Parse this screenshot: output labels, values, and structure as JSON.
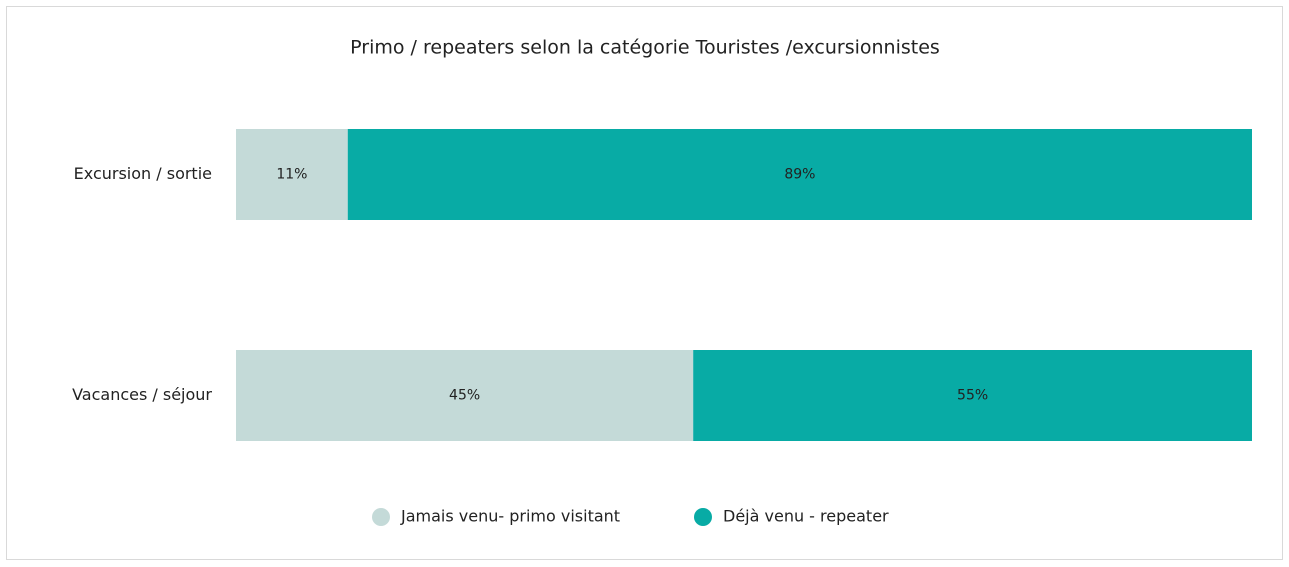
{
  "chart_data": {
    "type": "bar",
    "orientation": "horizontal",
    "stacked": true,
    "title": "Primo / repeaters selon la catégorie Touristes /excursionnistes",
    "categories": [
      "Excursion / sortie",
      "Vacances / séjour"
    ],
    "series": [
      {
        "name": "Jamais venu- primo visitant",
        "color": "#c4dad8",
        "values": [
          11,
          45
        ],
        "value_labels": [
          "11%",
          "45%"
        ]
      },
      {
        "name": "Déjà venu - repeater",
        "color": "#08aba5",
        "values": [
          89,
          55
        ],
        "value_labels": [
          "89%",
          "55%"
        ]
      }
    ],
    "xlim": [
      0,
      100
    ],
    "legend": "bottom"
  }
}
